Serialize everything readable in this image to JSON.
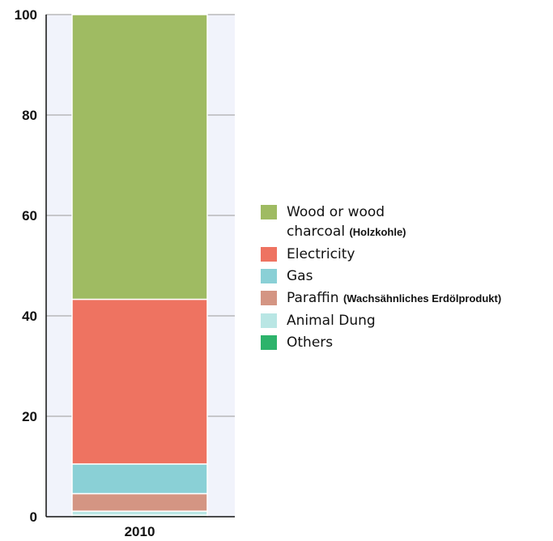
{
  "chart_data": {
    "type": "bar",
    "stacked": true,
    "categories": [
      "2010"
    ],
    "series": [
      {
        "name": "Others",
        "values": [
          0.3
        ],
        "color": "#2db36b"
      },
      {
        "name": "Animal Dung",
        "values": [
          0.8
        ],
        "color": "#b9e6e4"
      },
      {
        "name": "Paraffin",
        "note": "(Wachsähnliches Erdölprodukt)",
        "values": [
          3.5
        ],
        "color": "#d49583"
      },
      {
        "name": "Gas",
        "values": [
          5.9
        ],
        "color": "#8ad0d6"
      },
      {
        "name": "Electricity",
        "values": [
          32.8
        ],
        "color": "#ee7361"
      },
      {
        "name": "Wood or wood charcoal",
        "note": "(Holzkohle)",
        "values": [
          56.7
        ],
        "color": "#9fbb62"
      }
    ],
    "ylim": [
      0,
      100
    ],
    "yticks": [
      0,
      20,
      40,
      60,
      80,
      100
    ],
    "legend_position": "right",
    "legend": [
      {
        "label": "Wood or wood\ncharcoal",
        "note": "(Holzkohle)",
        "color": "#9fbb62"
      },
      {
        "label": "Electricity",
        "note": "",
        "color": "#ee7361"
      },
      {
        "label": "Gas",
        "note": "",
        "color": "#8ad0d6"
      },
      {
        "label": "Paraffin",
        "note": "(Wachsähnliches Erdölprodukt)",
        "color": "#d49583"
      },
      {
        "label": "Animal Dung",
        "note": "",
        "color": "#b9e6e4"
      },
      {
        "label": "Others",
        "note": "",
        "color": "#2db36b"
      }
    ],
    "plot_background": "#f1f3fb"
  }
}
